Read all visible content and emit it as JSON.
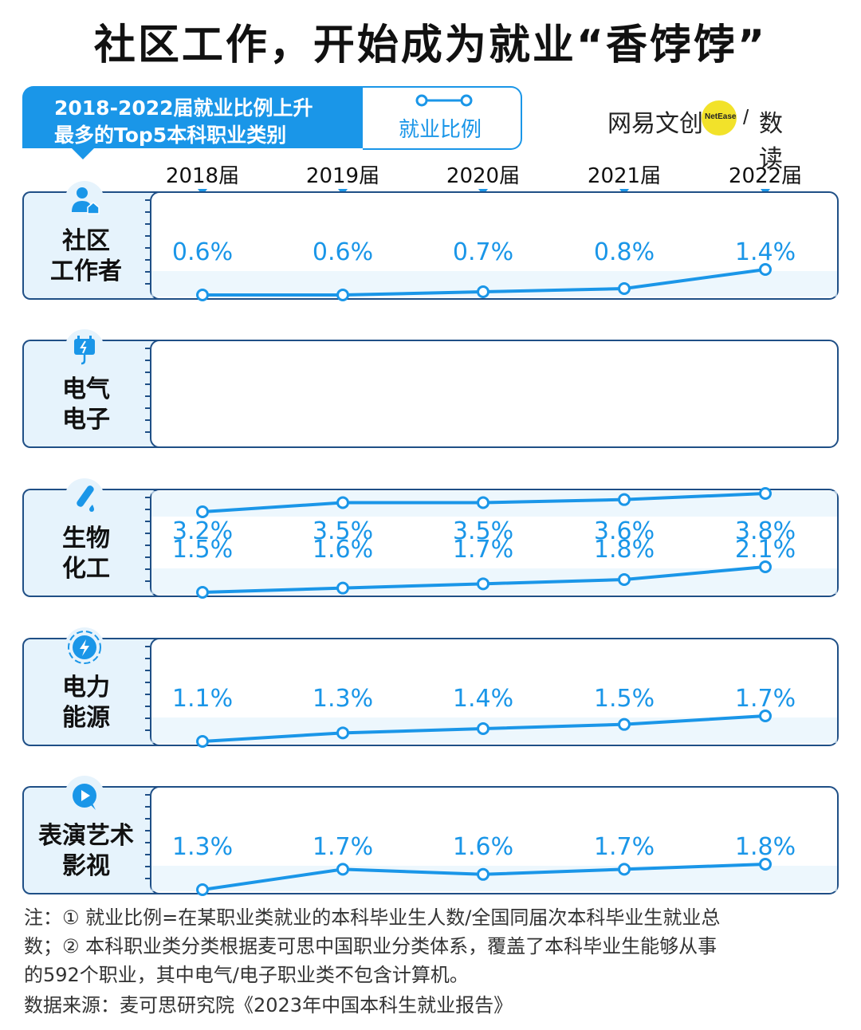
{
  "title": "社区工作，开始成为就业“香饽饽”",
  "subtitle_line1": "2018-2022届就业比例上升",
  "subtitle_line2": "最多的Top5本科职业类别",
  "legend_label": "就业比例",
  "brand": {
    "name": "网易文创",
    "badge": "NetEase",
    "sub": "数读"
  },
  "colors": {
    "accent": "#1a96e8",
    "border": "#1f4f86",
    "band": "#e6f3fc",
    "brand_dot": "#f2e22a"
  },
  "chart_data": {
    "type": "line",
    "x": [
      "2018届",
      "2019届",
      "2020届",
      "2021届",
      "2022届"
    ],
    "panels": [
      {
        "category": [
          "社区",
          "工作者"
        ],
        "icon": "person-house-icon",
        "values": [
          0.6,
          0.6,
          0.7,
          0.8,
          1.4
        ],
        "labels": [
          "0.6%",
          "0.6%",
          "0.7%",
          "0.8%",
          "1.4%"
        ],
        "label_position": "above"
      },
      {
        "category": [
          "电气",
          "电子"
        ],
        "icon": "electric-plug-icon",
        "values": [
          3.2,
          3.5,
          3.5,
          3.6,
          3.8
        ],
        "labels": [
          "3.2%",
          "3.5%",
          "3.5%",
          "3.6%",
          "3.8%"
        ],
        "label_position": "below"
      },
      {
        "category": [
          "生物",
          "化工"
        ],
        "icon": "test-tube-icon",
        "values": [
          1.5,
          1.6,
          1.7,
          1.8,
          2.1
        ],
        "labels": [
          "1.5%",
          "1.6%",
          "1.7%",
          "1.8%",
          "2.1%"
        ],
        "label_position": "above"
      },
      {
        "category": [
          "电力",
          "能源"
        ],
        "icon": "lightning-icon",
        "values": [
          1.1,
          1.3,
          1.4,
          1.5,
          1.7
        ],
        "labels": [
          "1.1%",
          "1.3%",
          "1.4%",
          "1.5%",
          "1.7%"
        ],
        "label_position": "above"
      },
      {
        "category": [
          "表演艺术",
          "影视"
        ],
        "icon": "play-icon",
        "values": [
          1.3,
          1.7,
          1.6,
          1.7,
          1.8
        ],
        "labels": [
          "1.3%",
          "1.7%",
          "1.6%",
          "1.7%",
          "1.8%"
        ],
        "label_position": "above"
      }
    ]
  },
  "notes": {
    "line1": "注：① 就业比例=在某职业类就业的本科毕业生人数/全国同届次本科毕业生就业总",
    "line2": "数；② 本科职业类分类根据麦可思中国职业分类体系，覆盖了本科毕业生能够从事",
    "line3": "的592个职业，其中电气/电子职业类不包含计算机。",
    "source": "数据来源：麦可思研究院《2023年中国本科生就业报告》"
  }
}
